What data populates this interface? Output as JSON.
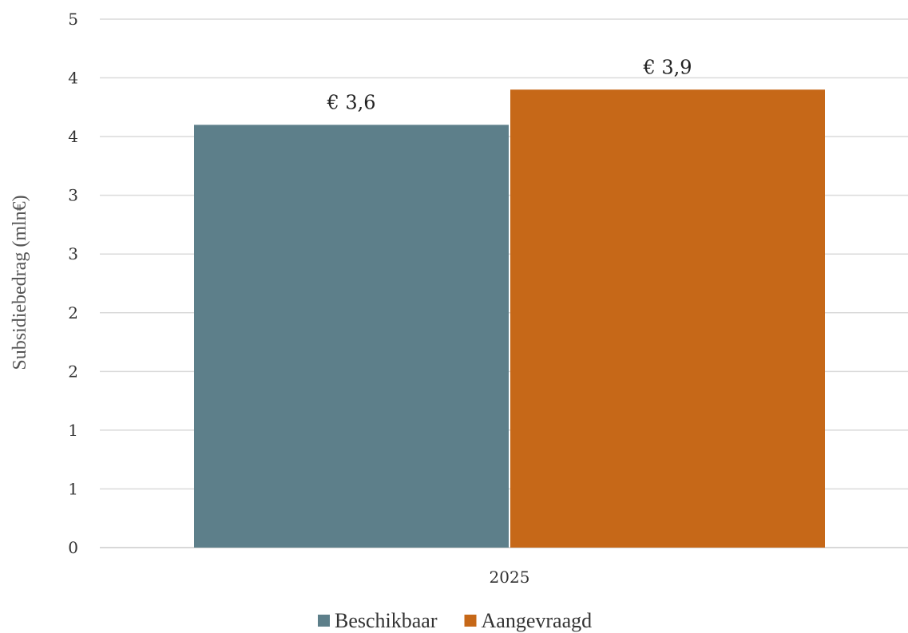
{
  "chart_data": {
    "type": "bar",
    "categories": [
      "2025"
    ],
    "series": [
      {
        "name": "Beschikbaar",
        "values": [
          3.6
        ],
        "color": "#5d7f8a",
        "label": "€ 3,6"
      },
      {
        "name": "Aangevraagd",
        "values": [
          3.9
        ],
        "color": "#c66818",
        "label": "€ 3,9"
      }
    ],
    "ylabel": "Subsidiebedrag (mln€)",
    "ytick_labels": [
      "0",
      "1",
      "1",
      "2",
      "2",
      "3",
      "3",
      "4",
      "4",
      "5"
    ],
    "ylim": [
      0,
      4.5
    ],
    "grid": true,
    "legend": "bottom"
  }
}
